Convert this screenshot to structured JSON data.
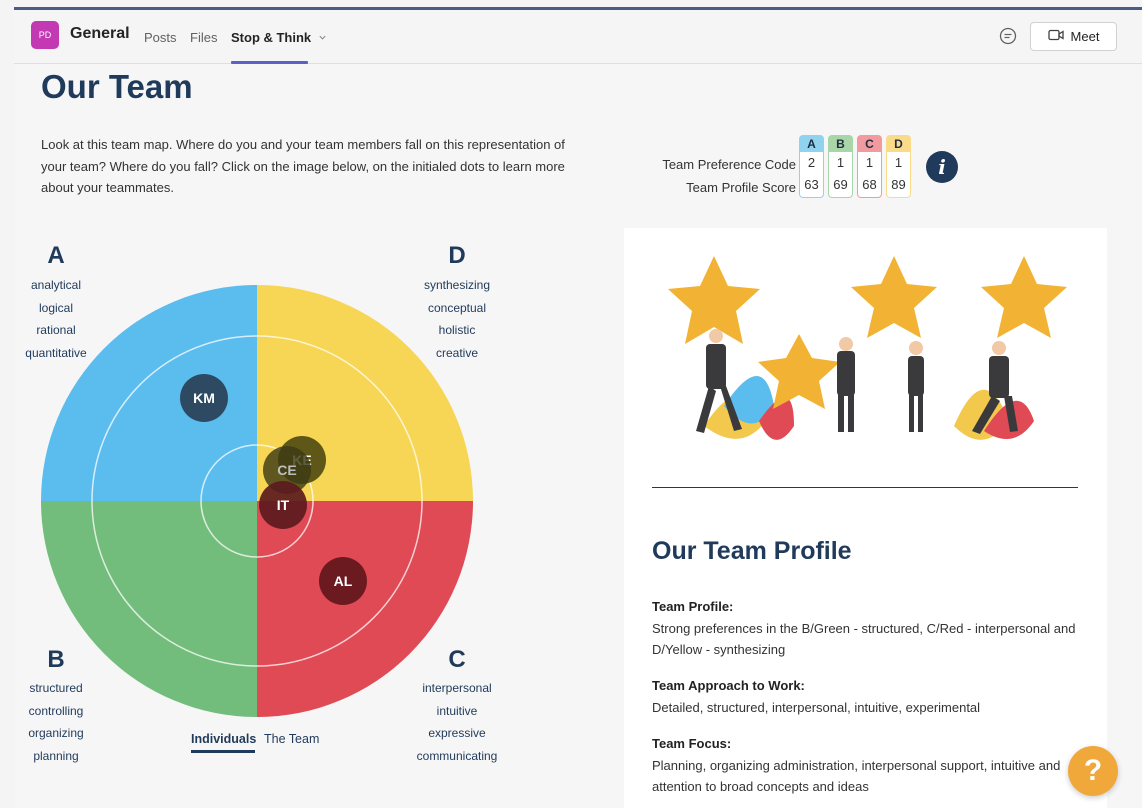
{
  "channel": {
    "avatar_text": "PD",
    "name": "General"
  },
  "tabs": [
    "Posts",
    "Files",
    "Stop & Think"
  ],
  "meet_label": "Meet",
  "page_title": "Our Team",
  "intro": "Look at this team map. Where do you and your team members fall on this representation of your team? Where do you fall? Click on the image below, on the initialed dots to learn more about your teammates.",
  "code_table": {
    "row_labels": [
      "Team Preference Code",
      "Team Profile Score"
    ],
    "columns": [
      {
        "letter": "A",
        "code": "2",
        "score": "63",
        "color": "#8fd3ef",
        "border": "#8fd3ef"
      },
      {
        "letter": "B",
        "code": "1",
        "score": "69",
        "color": "#a8d6a8",
        "border": "#a8d6a8"
      },
      {
        "letter": "C",
        "code": "1",
        "score": "68",
        "color": "#f19aa0",
        "border": "#f19aa0"
      },
      {
        "letter": "D",
        "code": "1",
        "score": "89",
        "color": "#fadb8a",
        "border": "#fadb8a"
      }
    ]
  },
  "info_icon": "info-icon",
  "quadrants": {
    "A": {
      "letter": "A",
      "words": [
        "analytical",
        "logical",
        "rational",
        "quantitative"
      ],
      "color": "#5bbcee"
    },
    "D": {
      "letter": "D",
      "words": [
        "synthesizing",
        "conceptual",
        "holistic",
        "creative"
      ],
      "color": "#f6d654"
    },
    "B": {
      "letter": "B",
      "words": [
        "structured",
        "controlling",
        "organizing",
        "planning"
      ],
      "color": "#72bd7b"
    },
    "C": {
      "letter": "C",
      "words": [
        "interpersonal",
        "intuitive",
        "expressive",
        "communicating"
      ],
      "color": "#df4a55"
    }
  },
  "members": [
    "KM",
    "KE",
    "CE",
    "IT",
    "AL"
  ],
  "view_tabs": [
    "Individuals",
    "The Team"
  ],
  "profile": {
    "heading": "Our Team Profile",
    "sections": [
      {
        "title": "Team Profile:",
        "text": "Strong preferences in the B/Green - structured, C/Red - interpersonal and D/Yellow - synthesizing"
      },
      {
        "title": "Team Approach to Work:",
        "text": "Detailed, structured, interpersonal, intuitive, experimental"
      },
      {
        "title": "Team Focus:",
        "text": "Planning, organizing administration, interpersonal support, intuitive and attention to broad concepts and ideas"
      }
    ]
  },
  "help_label": "?"
}
